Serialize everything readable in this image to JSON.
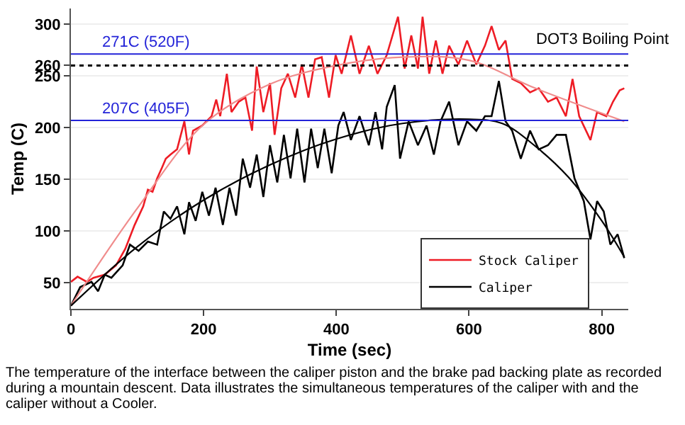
{
  "chart_data": {
    "type": "line",
    "xlabel": "Time (sec)",
    "ylabel": "Temp (C)",
    "xlim": [
      0,
      840
    ],
    "xticks": [
      0,
      200,
      400,
      600,
      800
    ],
    "ylim": [
      25,
      315
    ],
    "yticks": [
      50,
      100,
      150,
      200,
      250,
      260,
      300
    ],
    "grid": "y",
    "legend": "bottom right",
    "line_style": "solid",
    "marker": "none",
    "series": [
      {
        "name": "Stock Caliper",
        "color": "#ee1c25",
        "x": [
          0,
          10,
          24,
          34,
          51,
          68,
          82,
          96,
          109,
          116,
          123,
          130,
          137,
          143,
          150,
          160,
          171,
          178,
          184,
          198,
          212,
          219,
          225,
          235,
          242,
          253,
          263,
          273,
          280,
          290,
          300,
          307,
          317,
          327,
          338,
          348,
          358,
          368,
          378,
          389,
          399,
          408,
          422,
          435,
          449,
          462,
          476,
          493,
          503,
          513,
          523,
          530,
          540,
          550,
          560,
          570,
          584,
          597,
          611,
          624,
          634,
          645,
          655,
          665,
          678,
          692,
          705,
          719,
          732,
          746,
          756,
          766,
          783,
          793,
          807,
          817,
          827,
          834
        ],
        "values": [
          51,
          56,
          51,
          55,
          58,
          67,
          83,
          106,
          124,
          140,
          138,
          151,
          161,
          170,
          174,
          179,
          206,
          174,
          197,
          202,
          211,
          227,
          211,
          252,
          215,
          225,
          229,
          197,
          259,
          215,
          243,
          193,
          238,
          252,
          229,
          261,
          229,
          266,
          268,
          229,
          270,
          252,
          289,
          252,
          279,
          252,
          270,
          307,
          257,
          289,
          257,
          307,
          252,
          284,
          252,
          279,
          261,
          284,
          261,
          279,
          298,
          275,
          284,
          247,
          243,
          234,
          238,
          225,
          229,
          211,
          247,
          211,
          188,
          215,
          211,
          225,
          236,
          238
        ]
      },
      {
        "name": "Caliper",
        "color": "#000000",
        "x": [
          0,
          14,
          31,
          41,
          51,
          61,
          78,
          89,
          102,
          116,
          130,
          140,
          150,
          160,
          171,
          178,
          188,
          198,
          208,
          218,
          229,
          239,
          249,
          259,
          270,
          280,
          290,
          300,
          311,
          321,
          331,
          341,
          352,
          362,
          372,
          382,
          393,
          403,
          411,
          422,
          435,
          449,
          459,
          469,
          476,
          488,
          496,
          509,
          523,
          536,
          547,
          557,
          570,
          584,
          597,
          611,
          624,
          634,
          645,
          655,
          665,
          678,
          692,
          705,
          719,
          732,
          746,
          759,
          773,
          783,
          793,
          803,
          813,
          824,
          834
        ],
        "values": [
          28,
          46,
          51,
          42,
          58,
          55,
          67,
          87,
          81,
          90,
          87,
          119,
          112,
          124,
          97,
          128,
          110,
          138,
          115,
          142,
          106,
          142,
          115,
          170,
          142,
          174,
          133,
          183,
          147,
          193,
          151,
          199,
          147,
          199,
          161,
          199,
          156,
          202,
          215,
          188,
          211,
          183,
          215,
          179,
          220,
          241,
          170,
          206,
          183,
          202,
          174,
          206,
          225,
          183,
          206,
          197,
          211,
          211,
          245,
          206,
          197,
          170,
          197,
          179,
          183,
          193,
          193,
          151,
          129,
          92,
          129,
          119,
          87,
          97,
          74
        ]
      },
      {
        "color": "#f08c8c",
        "x": [
          0,
          100,
          200,
          300,
          400,
          500,
          600,
          700,
          834
        ],
        "values": [
          28,
          122,
          203,
          242,
          260,
          268,
          265,
          238,
          206
        ]
      },
      {
        "color": "#000000",
        "x": [
          0,
          100,
          200,
          300,
          400,
          500,
          600,
          650,
          700,
          750,
          800,
          834
        ],
        "values": [
          28,
          85,
          130,
          164,
          189,
          204,
          208,
          204,
          182,
          152,
          110,
          75
        ]
      }
    ],
    "ref_lines": [
      {
        "axis": "y",
        "value": 271,
        "label": "271C (520F)",
        "color": "#2323d8",
        "line_style": "solid"
      },
      {
        "axis": "y",
        "value": 207,
        "label": "207C (405F)",
        "color": "#2323d8",
        "line_style": "solid"
      },
      {
        "axis": "y",
        "value": 260,
        "label": "DOT3 Boiling Point",
        "color": "#000000",
        "line_style": "dotted"
      }
    ],
    "annotations": [
      "The temperature of the interface between the caliper piston and the brake pad backing plate as recorded during a mountain descent. Data illustrates the simultaneous temperatures of the caliper with and the caliper without a Cooler."
    ]
  }
}
